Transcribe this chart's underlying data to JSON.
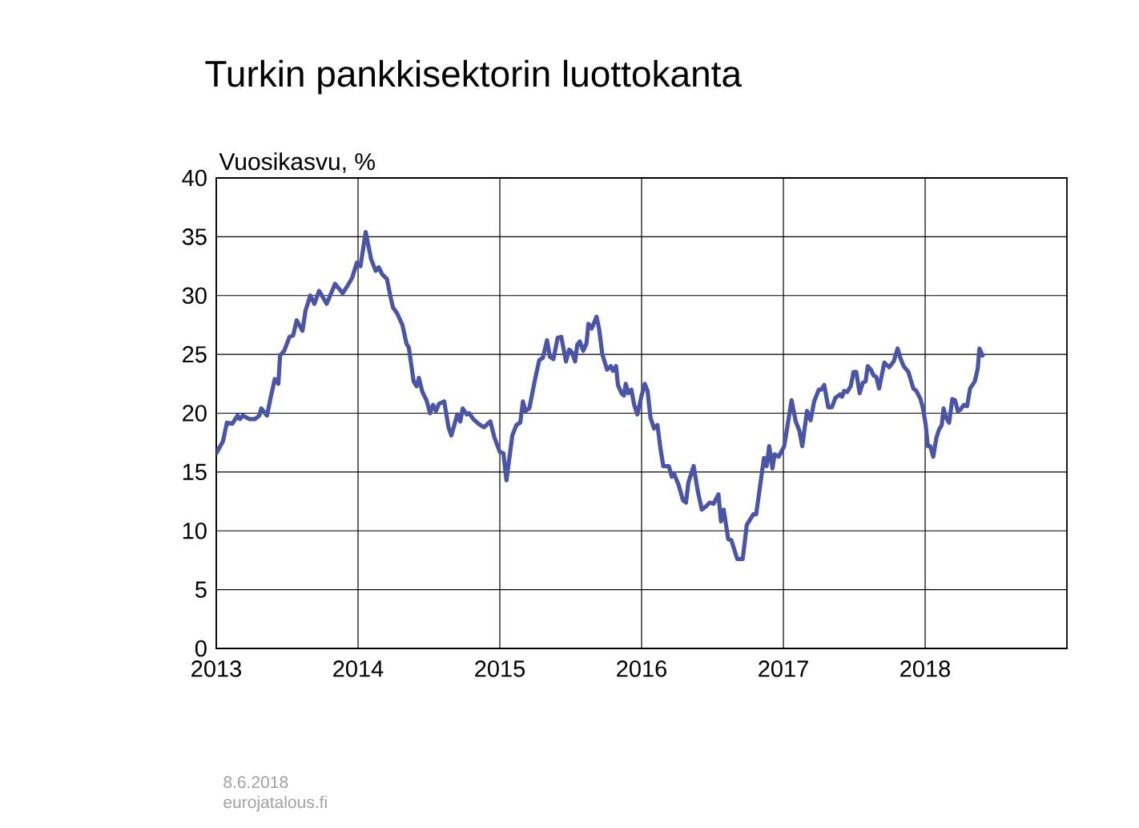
{
  "chart_data": {
    "type": "line",
    "title": "Turkin pankkisektorin luottokanta",
    "ylabel": "Vuosikasvu,  %",
    "annotations": [
      "8.6.2018",
      "eurojatalous.fi"
    ],
    "xlim": [
      2013,
      2019
    ],
    "xticks": [
      2013,
      2014,
      2015,
      2016,
      2017,
      2018
    ],
    "ylim": [
      0,
      40
    ],
    "yticks": [
      0,
      5,
      10,
      15,
      20,
      25,
      30,
      35,
      40
    ],
    "grid": true,
    "series": [
      {
        "color": "#4b55a5",
        "x": [
          2013.0,
          2013.047,
          2013.075,
          2013.113,
          2013.15,
          2013.167,
          2013.188,
          2013.233,
          2013.272,
          2013.304,
          2013.317,
          2013.358,
          2013.383,
          2013.413,
          2013.438,
          2013.45,
          2013.479,
          2013.517,
          2013.542,
          2013.567,
          2013.608,
          2013.629,
          2013.663,
          2013.692,
          2013.725,
          2013.779,
          2013.838,
          2013.892,
          2013.929,
          2013.958,
          2013.992,
          2014.017,
          2014.054,
          2014.092,
          2014.125,
          2014.146,
          2014.171,
          2014.204,
          2014.229,
          2014.246,
          2014.275,
          2014.313,
          2014.342,
          2014.358,
          2014.392,
          2014.413,
          2014.429,
          2014.454,
          2014.483,
          2014.508,
          2014.529,
          2014.55,
          2014.571,
          2014.608,
          2014.638,
          2014.658,
          2014.7,
          2014.721,
          2014.738,
          2014.767,
          2014.783,
          2014.813,
          2014.85,
          2014.888,
          2014.933,
          2014.963,
          2015.0,
          2015.025,
          2015.047,
          2015.088,
          2015.117,
          2015.144,
          2015.163,
          2015.181,
          2015.208,
          2015.247,
          2015.278,
          2015.303,
          2015.333,
          2015.353,
          2015.378,
          2015.408,
          2015.433,
          2015.467,
          2015.489,
          2015.508,
          2015.531,
          2015.546,
          2015.564,
          2015.588,
          2015.611,
          2015.625,
          2015.648,
          2015.682,
          2015.7,
          2015.723,
          2015.757,
          2015.783,
          2015.798,
          2015.82,
          2015.833,
          2015.858,
          2015.875,
          2015.888,
          2015.906,
          2015.928,
          2015.948,
          2015.97,
          2016.0,
          2016.022,
          2016.042,
          2016.063,
          2016.088,
          2016.112,
          2016.133,
          2016.153,
          2016.192,
          2016.213,
          2016.228,
          2016.261,
          2016.292,
          2016.313,
          2016.33,
          2016.367,
          2016.396,
          2016.425,
          2016.456,
          2016.48,
          2016.508,
          2016.542,
          2016.56,
          2016.579,
          2016.611,
          2016.633,
          2016.675,
          2016.713,
          2016.742,
          2016.788,
          2016.808,
          2016.863,
          2016.882,
          2016.9,
          2016.923,
          2016.938,
          2016.967,
          2017.006,
          2017.058,
          2017.087,
          2017.113,
          2017.133,
          2017.167,
          2017.192,
          2017.217,
          2017.25,
          2017.267,
          2017.288,
          2017.317,
          2017.342,
          2017.367,
          2017.4,
          2017.414,
          2017.429,
          2017.45,
          2017.475,
          2017.495,
          2017.514,
          2017.538,
          2017.561,
          2017.58,
          2017.595,
          2017.617,
          2017.637,
          2017.655,
          2017.675,
          2017.712,
          2017.746,
          2017.778,
          2017.806,
          2017.825,
          2017.848,
          2017.882,
          2017.917,
          2017.938,
          2017.967,
          2017.985,
          2018.004,
          2018.019,
          2018.036,
          2018.057,
          2018.079,
          2018.098,
          2018.117,
          2018.13,
          2018.148,
          2018.169,
          2018.192,
          2018.211,
          2018.23,
          2018.248,
          2018.273,
          2018.296,
          2018.317,
          2018.35,
          2018.371,
          2018.383,
          2018.405
        ],
        "values": [
          16.6,
          17.6,
          19.2,
          19.1,
          19.8,
          19.5,
          19.8,
          19.5,
          19.5,
          19.8,
          20.4,
          19.8,
          21.3,
          22.9,
          22.5,
          24.9,
          25.3,
          26.5,
          26.6,
          27.9,
          27.0,
          28.7,
          30.0,
          29.3,
          30.4,
          29.3,
          31.0,
          30.2,
          30.9,
          31.5,
          32.8,
          32.5,
          35.4,
          33.1,
          32.1,
          32.4,
          31.8,
          31.4,
          29.9,
          29.0,
          28.5,
          27.5,
          25.9,
          25.6,
          22.7,
          22.3,
          23.0,
          21.8,
          21.1,
          20.0,
          20.7,
          20.2,
          20.8,
          21.0,
          18.8,
          18.1,
          19.9,
          19.3,
          20.4,
          19.9,
          20.0,
          19.5,
          19.1,
          18.8,
          19.3,
          17.9,
          16.7,
          16.6,
          14.3,
          18.1,
          19.0,
          19.2,
          21.0,
          20.2,
          20.4,
          22.8,
          24.5,
          24.7,
          26.2,
          24.8,
          24.6,
          26.4,
          26.5,
          24.4,
          25.4,
          25.2,
          24.4,
          25.8,
          26.1,
          25.3,
          25.9,
          27.6,
          27.2,
          28.2,
          27.2,
          25.0,
          23.7,
          24.0,
          23.6,
          24.0,
          22.4,
          21.7,
          21.5,
          22.5,
          21.7,
          22.0,
          20.7,
          19.9,
          21.5,
          22.5,
          21.9,
          19.6,
          18.7,
          19.0,
          17.0,
          15.5,
          15.5,
          14.6,
          14.9,
          13.9,
          12.6,
          12.4,
          14.1,
          15.5,
          13.4,
          11.8,
          12.1,
          12.4,
          12.3,
          13.1,
          10.8,
          11.8,
          9.3,
          9.2,
          7.6,
          7.6,
          10.5,
          11.4,
          11.4,
          16.2,
          15.5,
          17.2,
          15.3,
          16.5,
          16.3,
          17.2,
          21.1,
          19.3,
          18.5,
          17.2,
          20.2,
          19.4,
          21.0,
          22.0,
          22.0,
          22.4,
          20.5,
          20.5,
          21.3,
          21.6,
          21.4,
          21.9,
          21.8,
          22.3,
          23.5,
          23.5,
          21.7,
          22.6,
          22.7,
          24.0,
          23.7,
          23.2,
          23.1,
          22.1,
          24.3,
          23.9,
          24.4,
          25.5,
          24.7,
          24.0,
          23.5,
          22.1,
          21.9,
          21.2,
          20.4,
          19.0,
          17.2,
          17.2,
          16.3,
          17.9,
          18.6,
          19.0,
          20.4,
          19.6,
          19.2,
          21.2,
          21.1,
          20.2,
          20.3,
          20.7,
          20.6,
          22.1,
          22.7,
          23.8,
          25.5,
          24.9
        ]
      }
    ]
  }
}
